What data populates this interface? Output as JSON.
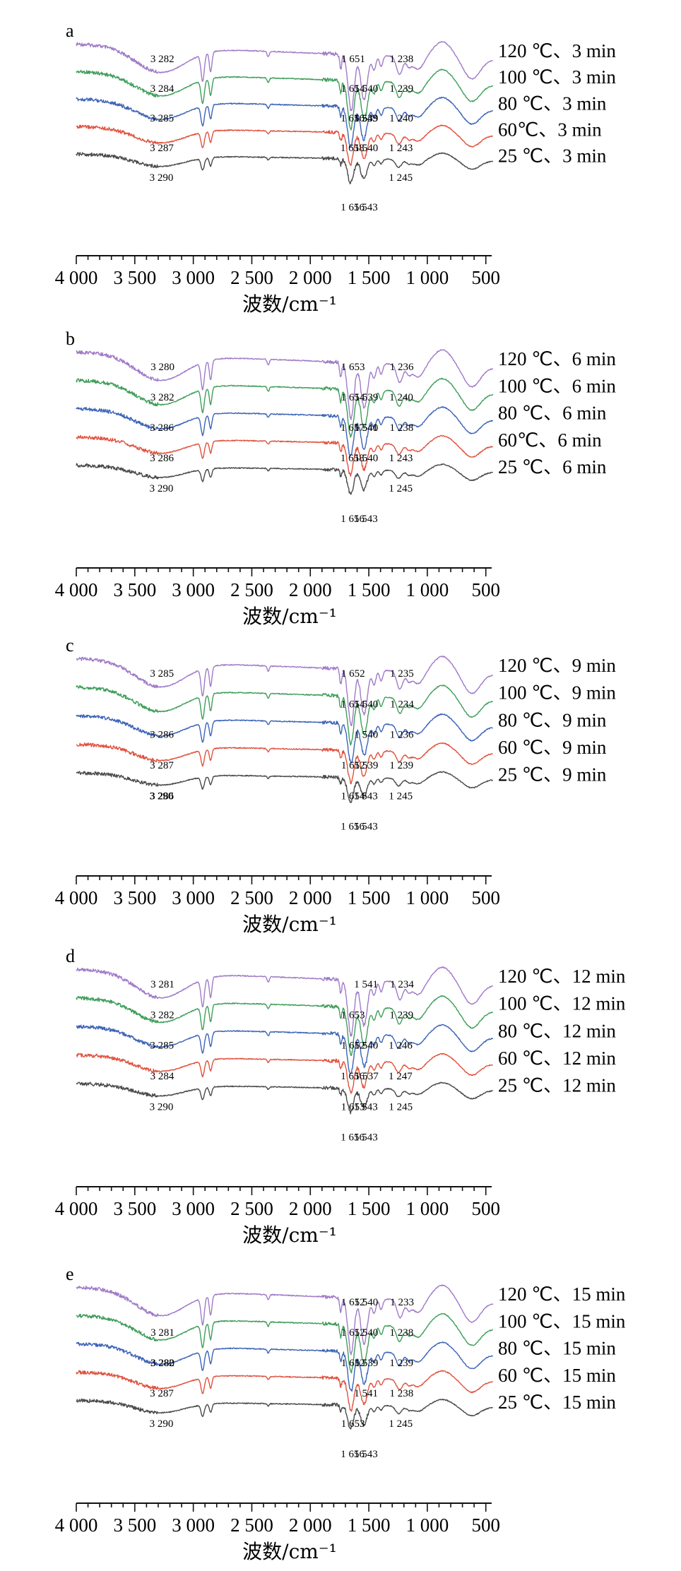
{
  "figure": {
    "xlabel": "波数/cm⁻¹",
    "xlim": [
      4000,
      450
    ],
    "xticks": [
      {
        "value": 4000,
        "label": "4 000"
      },
      {
        "value": 3500,
        "label": "3 500"
      },
      {
        "value": 3000,
        "label": "3 000"
      },
      {
        "value": 2500,
        "label": "2 500"
      },
      {
        "value": 2000,
        "label": "2 000"
      },
      {
        "value": 1500,
        "label": "1 500"
      },
      {
        "value": 1000,
        "label": "1 000"
      },
      {
        "value": 500,
        "label": "500"
      }
    ],
    "colors": {
      "25": "#4a4a4a",
      "60": "#e0523e",
      "80": "#3c64b6",
      "100": "#3f9e5a",
      "120": "#a07ac8"
    }
  },
  "chart_data": [
    {
      "type": "line",
      "panel": "a",
      "xlabel": "波数/cm⁻¹",
      "xlim": [
        4000,
        450
      ],
      "series": [
        {
          "name": "120 ℃、3 min",
          "color": "#a07ac8",
          "peaks": [
            3282,
            1651,
            1540,
            1238
          ]
        },
        {
          "name": "100 ℃、3 min",
          "color": "#3f9e5a",
          "peaks": [
            3284,
            1654,
            1539,
            1239
          ]
        },
        {
          "name": "80 ℃、3 min",
          "color": "#3c64b6",
          "peaks": [
            3285,
            1656,
            1543,
            1240
          ]
        },
        {
          "name": "60℃、3 min",
          "color": "#e0523e",
          "peaks": [
            3287,
            1658,
            1540,
            1243
          ]
        },
        {
          "name": "25 ℃、3 min",
          "color": "#4a4a4a",
          "peaks": [
            3290,
            1656,
            1543,
            1245
          ]
        }
      ],
      "labels": [
        {
          "text": "3 282",
          "x": 3282,
          "row": 0
        },
        {
          "text": "1 651",
          "x": 1651,
          "row": 0
        },
        {
          "text": "1 238",
          "x": 1238,
          "row": 0
        },
        {
          "text": "3 284",
          "x": 3284,
          "row": 1
        },
        {
          "text": "1 540",
          "x": 1540,
          "row": 1
        },
        {
          "text": "1 654",
          "x": 1654,
          "row": 1
        },
        {
          "text": "1 239",
          "x": 1239,
          "row": 1
        },
        {
          "text": "3 285",
          "x": 3285,
          "row": 2
        },
        {
          "text": "1 539",
          "x": 1539,
          "row": 2
        },
        {
          "text": "1 240",
          "x": 1240,
          "row": 2
        },
        {
          "text": "1 656",
          "x": 1656,
          "row": 2
        },
        {
          "text": "1 543",
          "x": 1543,
          "row": 2
        },
        {
          "text": "3 287",
          "x": 3287,
          "row": 3
        },
        {
          "text": "1 243",
          "x": 1243,
          "row": 3
        },
        {
          "text": "1 658",
          "x": 1658,
          "row": 3
        },
        {
          "text": "1 540",
          "x": 1540,
          "row": 3
        },
        {
          "text": "3 290",
          "x": 3290,
          "row": 4
        },
        {
          "text": "1 245",
          "x": 1245,
          "row": 4
        },
        {
          "text": "1 656",
          "x": 1656,
          "row": 5
        },
        {
          "text": "1 543",
          "x": 1543,
          "row": 5
        }
      ]
    },
    {
      "type": "line",
      "panel": "b",
      "xlabel": "波数/cm⁻¹",
      "xlim": [
        4000,
        450
      ],
      "series": [
        {
          "name": "120 ℃、6 min",
          "color": "#a07ac8",
          "peaks": [
            3280,
            1653,
            1539,
            1236
          ]
        },
        {
          "name": "100 ℃、6 min",
          "color": "#3f9e5a",
          "peaks": [
            3282,
            1654,
            1540,
            1240
          ]
        },
        {
          "name": "80 ℃、6 min",
          "color": "#3c64b6",
          "peaks": [
            3286,
            1657,
            1541,
            1238
          ]
        },
        {
          "name": "60℃、6 min",
          "color": "#e0523e",
          "peaks": [
            3286,
            1658,
            1540,
            1243
          ]
        },
        {
          "name": "25 ℃、6 min",
          "color": "#4a4a4a",
          "peaks": [
            3290,
            1656,
            1543,
            1245
          ]
        }
      ],
      "labels": [
        {
          "text": "3 280",
          "x": 3280,
          "row": 0
        },
        {
          "text": "1 653",
          "x": 1653,
          "row": 0
        },
        {
          "text": "1 236",
          "x": 1236,
          "row": 0
        },
        {
          "text": "3 282",
          "x": 3282,
          "row": 1
        },
        {
          "text": "1 539",
          "x": 1539,
          "row": 1
        },
        {
          "text": "1 654",
          "x": 1654,
          "row": 1
        },
        {
          "text": "1 240",
          "x": 1240,
          "row": 1
        },
        {
          "text": "3 286",
          "x": 3286,
          "row": 2
        },
        {
          "text": "1 540",
          "x": 1540,
          "row": 2
        },
        {
          "text": "1 238",
          "x": 1238,
          "row": 2
        },
        {
          "text": "1 657",
          "x": 1657,
          "row": 2
        },
        {
          "text": "1 541",
          "x": 1541,
          "row": 2
        },
        {
          "text": "3 286",
          "x": 3286,
          "row": 3
        },
        {
          "text": "1 243",
          "x": 1243,
          "row": 3
        },
        {
          "text": "1 658",
          "x": 1658,
          "row": 3
        },
        {
          "text": "1 540",
          "x": 1540,
          "row": 3
        },
        {
          "text": "3 290",
          "x": 3290,
          "row": 4
        },
        {
          "text": "1 245",
          "x": 1245,
          "row": 4
        },
        {
          "text": "1 656",
          "x": 1656,
          "row": 5
        },
        {
          "text": "1 543",
          "x": 1543,
          "row": 5
        }
      ]
    },
    {
      "type": "line",
      "panel": "c",
      "xlabel": "波数/cm⁻¹",
      "xlim": [
        4000,
        450
      ],
      "series": [
        {
          "name": "120 ℃、9 min",
          "color": "#a07ac8",
          "peaks": [
            3285,
            1652,
            1540,
            1235
          ]
        },
        {
          "name": "100 ℃、9 min",
          "color": "#3f9e5a",
          "peaks": [
            3286,
            1654,
            1540,
            1234
          ]
        },
        {
          "name": "80 ℃、9 min",
          "color": "#3c64b6",
          "peaks": [
            3287,
            1652,
            1539,
            1236
          ]
        },
        {
          "name": "60 ℃、9 min",
          "color": "#e0523e",
          "peaks": [
            3286,
            1654,
            1543,
            1239
          ]
        },
        {
          "name": "25 ℃、9 min",
          "color": "#4a4a4a",
          "peaks": [
            3290,
            1656,
            1543,
            1245
          ]
        }
      ],
      "labels": [
        {
          "text": "3 285",
          "x": 3285,
          "row": 0
        },
        {
          "text": "1 652",
          "x": 1652,
          "row": 0
        },
        {
          "text": "1 235",
          "x": 1235,
          "row": 0
        },
        {
          "text": "1 540",
          "x": 1540,
          "row": 1
        },
        {
          "text": "1 654",
          "x": 1654,
          "row": 1
        },
        {
          "text": "1 234",
          "x": 1234,
          "row": 1
        },
        {
          "text": "3 286",
          "x": 3286,
          "row": 2
        },
        {
          "text": "1 540",
          "x": 1540,
          "row": 2
        },
        {
          "text": "1 236",
          "x": 1236,
          "row": 2
        },
        {
          "text": "3 287",
          "x": 3287,
          "row": 3
        },
        {
          "text": "1 652",
          "x": 1652,
          "row": 3
        },
        {
          "text": "1 539",
          "x": 1539,
          "row": 3
        },
        {
          "text": "1 239",
          "x": 1239,
          "row": 3
        },
        {
          "text": "3 286",
          "x": 3286,
          "row": 4
        },
        {
          "text": "1 654",
          "x": 1654,
          "row": 4
        },
        {
          "text": "1 543",
          "x": 1543,
          "row": 4
        },
        {
          "text": "3 290",
          "x": 3290,
          "row": 4
        },
        {
          "text": "1 245",
          "x": 1245,
          "row": 4
        },
        {
          "text": "1 656",
          "x": 1656,
          "row": 5
        },
        {
          "text": "1 543",
          "x": 1543,
          "row": 5
        }
      ]
    },
    {
      "type": "line",
      "panel": "d",
      "xlabel": "波数/cm⁻¹",
      "xlim": [
        4000,
        450
      ],
      "series": [
        {
          "name": "120 ℃、12 min",
          "color": "#a07ac8",
          "peaks": [
            3281,
            1653,
            1541,
            1234
          ]
        },
        {
          "name": "100 ℃、12 min",
          "color": "#3f9e5a",
          "peaks": [
            3282,
            1652,
            1540,
            1239
          ]
        },
        {
          "name": "80 ℃、12 min",
          "color": "#3c64b6",
          "peaks": [
            3285,
            1656,
            1537,
            1246
          ]
        },
        {
          "name": "60 ℃、12 min",
          "color": "#e0523e",
          "peaks": [
            3284,
            1653,
            1543,
            1247
          ]
        },
        {
          "name": "25 ℃、12 min",
          "color": "#4a4a4a",
          "peaks": [
            3290,
            1656,
            1543,
            1245
          ]
        }
      ],
      "labels": [
        {
          "text": "3 281",
          "x": 3281,
          "row": 0
        },
        {
          "text": "1 541",
          "x": 1541,
          "row": 0
        },
        {
          "text": "1 234",
          "x": 1234,
          "row": 0
        },
        {
          "text": "1 653",
          "x": 1653,
          "row": 1
        },
        {
          "text": "1 239",
          "x": 1239,
          "row": 1
        },
        {
          "text": "3 282",
          "x": 3282,
          "row": 1
        },
        {
          "text": "1 540",
          "x": 1540,
          "row": 2
        },
        {
          "text": "1 652",
          "x": 1652,
          "row": 2
        },
        {
          "text": "1 246",
          "x": 1246,
          "row": 2
        },
        {
          "text": "3 285",
          "x": 3285,
          "row": 2
        },
        {
          "text": "1 537",
          "x": 1537,
          "row": 3
        },
        {
          "text": "1 656",
          "x": 1656,
          "row": 3
        },
        {
          "text": "1 247",
          "x": 1247,
          "row": 3
        },
        {
          "text": "3 284",
          "x": 3284,
          "row": 3
        },
        {
          "text": "1 543",
          "x": 1543,
          "row": 4
        },
        {
          "text": "1 653",
          "x": 1653,
          "row": 4
        },
        {
          "text": "1 245",
          "x": 1245,
          "row": 4
        },
        {
          "text": "3 290",
          "x": 3290,
          "row": 4
        },
        {
          "text": "1 656",
          "x": 1656,
          "row": 5
        },
        {
          "text": "1 543",
          "x": 1543,
          "row": 5
        }
      ]
    },
    {
      "type": "line",
      "panel": "e",
      "xlabel": "波数/cm⁻¹",
      "xlim": [
        4000,
        450
      ],
      "series": [
        {
          "name": "120 ℃、15 min",
          "color": "#a07ac8",
          "peaks": [
            3281,
            1652,
            1540,
            1233
          ]
        },
        {
          "name": "100 ℃、15 min",
          "color": "#3f9e5a",
          "peaks": [
            3282,
            1652,
            1540,
            1238
          ]
        },
        {
          "name": "80 ℃、15 min",
          "color": "#3c64b6",
          "peaks": [
            3280,
            1652,
            1539,
            1239
          ]
        },
        {
          "name": "60 ℃、15 min",
          "color": "#e0523e",
          "peaks": [
            3287,
            1653,
            1541,
            1238
          ]
        },
        {
          "name": "25 ℃、15 min",
          "color": "#4a4a4a",
          "peaks": [
            3290,
            1656,
            1543,
            1245
          ]
        }
      ],
      "labels": [
        {
          "text": "1 652",
          "x": 1652,
          "row": 0
        },
        {
          "text": "1 540",
          "x": 1540,
          "row": 0
        },
        {
          "text": "1 233",
          "x": 1233,
          "row": 0
        },
        {
          "text": "3 281",
          "x": 3281,
          "row": 1
        },
        {
          "text": "1 238",
          "x": 1238,
          "row": 1
        },
        {
          "text": "1 652",
          "x": 1652,
          "row": 1
        },
        {
          "text": "1 540",
          "x": 1540,
          "row": 1
        },
        {
          "text": "3 282",
          "x": 3282,
          "row": 2
        },
        {
          "text": "1 239",
          "x": 1239,
          "row": 2
        },
        {
          "text": "3 280",
          "x": 3280,
          "row": 2
        },
        {
          "text": "1 652",
          "x": 1652,
          "row": 2
        },
        {
          "text": "1 539",
          "x": 1539,
          "row": 2
        },
        {
          "text": "3 287",
          "x": 3287,
          "row": 3
        },
        {
          "text": "1 541",
          "x": 1541,
          "row": 3
        },
        {
          "text": "1 238",
          "x": 1238,
          "row": 3
        },
        {
          "text": "3 290",
          "x": 3290,
          "row": 4
        },
        {
          "text": "1 653",
          "x": 1653,
          "row": 4
        },
        {
          "text": "1 245",
          "x": 1245,
          "row": 4
        },
        {
          "text": "1 656",
          "x": 1656,
          "row": 5
        },
        {
          "text": "1 543",
          "x": 1543,
          "row": 5
        }
      ]
    }
  ]
}
